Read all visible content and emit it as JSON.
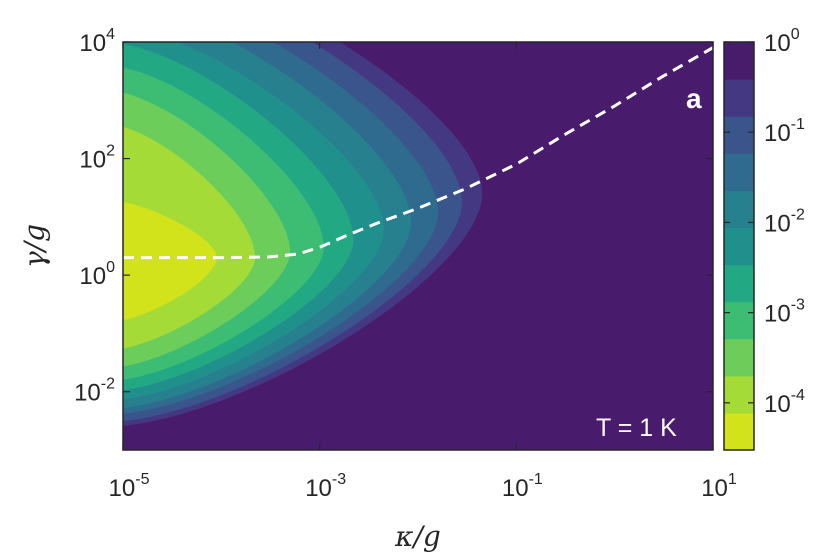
{
  "chart_data": {
    "type": "heatmap",
    "title": "",
    "xlabel": "κ/g",
    "ylabel": "γ/g",
    "x_scale": "log",
    "y_scale": "log",
    "xlim": [
      1e-05,
      10
    ],
    "ylim": [
      0.001,
      10000
    ],
    "x_ticks": [
      {
        "base": "10",
        "exp": "-5",
        "value": 1e-05
      },
      {
        "base": "10",
        "exp": "-3",
        "value": 0.001
      },
      {
        "base": "10",
        "exp": "-1",
        "value": 0.1
      },
      {
        "base": "10",
        "exp": "1",
        "value": 10
      }
    ],
    "y_ticks": [
      {
        "base": "10",
        "exp": "-2",
        "value": 0.01
      },
      {
        "base": "10",
        "exp": "0",
        "value": 1
      },
      {
        "base": "10",
        "exp": "2",
        "value": 100
      },
      {
        "base": "10",
        "exp": "4",
        "value": 10000
      }
    ],
    "grid": false,
    "colorbar": {
      "scale": "log",
      "range": [
        3e-05,
        1
      ],
      "levels": 10,
      "colors": [
        "#d2e21b",
        "#a5db36",
        "#6ccd5a",
        "#3dbc74",
        "#23a884",
        "#20908d",
        "#27808e",
        "#2f6b8e",
        "#3a548c",
        "#453882",
        "#481b6d"
      ],
      "ticks": [
        {
          "base": "10",
          "exp": "-4",
          "value": 0.0001
        },
        {
          "base": "10",
          "exp": "-3",
          "value": 0.001
        },
        {
          "base": "10",
          "exp": "-2",
          "value": 0.01
        },
        {
          "base": "10",
          "exp": "-1",
          "value": 0.1
        },
        {
          "base": "10",
          "exp": "0",
          "value": 1
        }
      ]
    },
    "contour_boundaries": [
      {
        "level": 1,
        "peak_y": 2,
        "tip_x": 9e-05,
        "top_y": 20,
        "bottom_y": 0.15
      },
      {
        "level": 2,
        "peak_y": 2,
        "tip_x": 0.00022,
        "top_y": 400,
        "bottom_y": 0.05
      },
      {
        "level": 3,
        "peak_y": 2.5,
        "tip_x": 0.0005,
        "top_y": 1500,
        "bottom_y": 0.025
      },
      {
        "level": 4,
        "peak_y": 3,
        "tip_x": 0.0011,
        "top_y": 4000,
        "bottom_y": 0.015
      },
      {
        "level": 5,
        "peak_y": 4,
        "tip_x": 0.0022,
        "top_y": 10000,
        "bottom_y": 0.01
      },
      {
        "level": 6,
        "peak_y": 6,
        "tip_x": 0.0045,
        "top_y": 20000,
        "bottom_y": 0.007
      },
      {
        "level": 7,
        "peak_y": 8,
        "tip_x": 0.0085,
        "top_y": 50000,
        "bottom_y": 0.005
      },
      {
        "level": 8,
        "peak_y": 12,
        "tip_x": 0.016,
        "top_y": 100000,
        "bottom_y": 0.004
      },
      {
        "level": 9,
        "peak_y": 18,
        "tip_x": 0.028,
        "top_y": 200000,
        "bottom_y": 0.003
      },
      {
        "level": 10,
        "peak_y": 25,
        "tip_x": 0.045,
        "top_y": 300000,
        "bottom_y": 0.0025
      }
    ],
    "dashed_line": {
      "color": "#ffffff",
      "x": [
        1e-05,
        3e-05,
        0.0001,
        0.0003,
        0.0006,
        0.001,
        0.002,
        0.004,
        0.01,
        0.03,
        0.1,
        0.3,
        1,
        3,
        10
      ],
      "y": [
        2,
        2,
        2,
        2.05,
        2.3,
        3,
        5,
        8,
        14,
        30,
        80,
        250,
        800,
        2500,
        8000
      ]
    },
    "annotations": {
      "panel_label": "a",
      "temperature": "T = 1 K"
    }
  }
}
